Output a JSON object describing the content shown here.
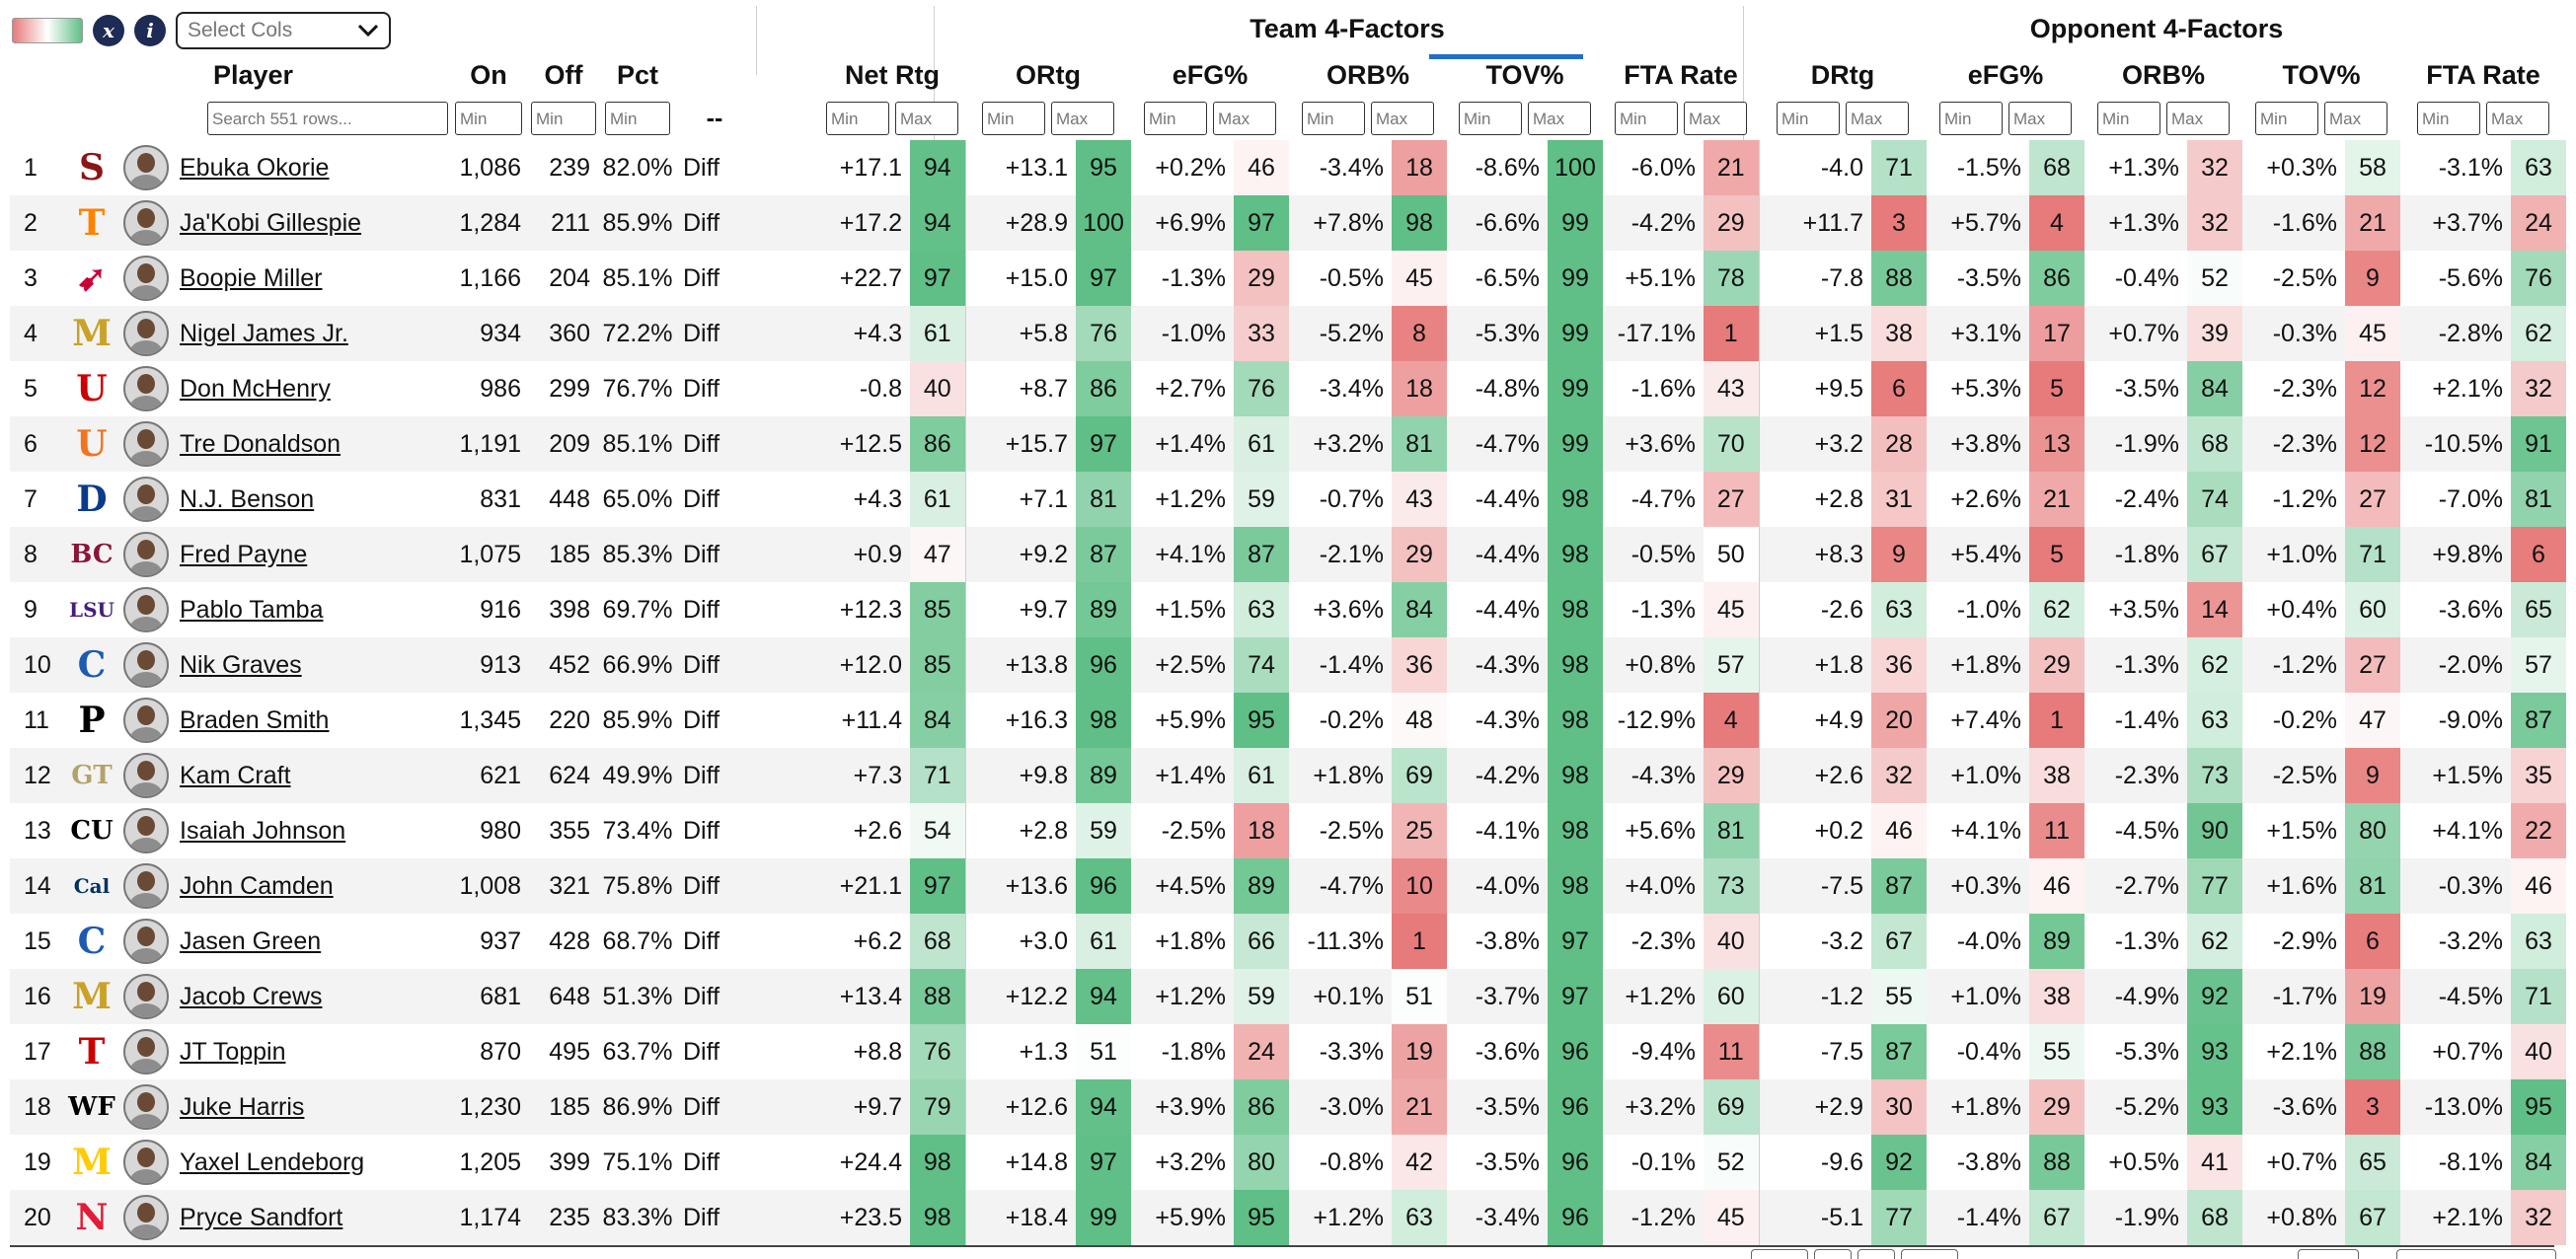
{
  "toolbar": {
    "stats_icon": "x",
    "info_icon": "i",
    "select_cols_placeholder": "Select Cols",
    "swatch_colors": [
      "#e77a7a",
      "#ffffff",
      "#5fbf86"
    ]
  },
  "groups": {
    "team": "Team 4-Factors",
    "opp": "Opponent 4-Factors"
  },
  "columns": {
    "player": "Player",
    "on": "On",
    "off": "Off",
    "pct": "Pct",
    "dash": "--",
    "netrtg": "Net Rtg",
    "ortg": "ORtg",
    "efg": "eFG%",
    "orb": "ORB%",
    "tov": "TOV%",
    "fta": "FTA Rate",
    "drtg": "DRtg",
    "oefg": "eFG%",
    "oorb": "ORB%",
    "otov": "TOV%",
    "ofta": "FTA Rate"
  },
  "filters": {
    "search_placeholder": "Search 551 rows...",
    "min": "Min",
    "max": "Max"
  },
  "colors": {
    "green_dark": "#5fbf86",
    "red_dark": "#e77a7a",
    "tov_indicator": "#1f6fc5"
  },
  "rows": [
    {
      "rank": "1",
      "logo": "stanford-logo",
      "logo_char": "S",
      "logo_color": "#8c1515",
      "player": "Ebuka Okorie",
      "on": "1,086",
      "off": "239",
      "pct": "82.0%",
      "diff": "Diff",
      "net": "+17.1",
      "netp": 94,
      "ortg": "+13.1",
      "ortgp": 95,
      "efg": "+0.2%",
      "efgp": 46,
      "orb": "-3.4%",
      "orbp": 18,
      "tov": "-8.6%",
      "tovp": 100,
      "fta": "-6.0%",
      "ftap": 21,
      "drtg": "-4.0",
      "drtgp": 71,
      "oefg": "-1.5%",
      "oefgp": 68,
      "oorb": "+1.3%",
      "oorbp": 32,
      "otov": "+0.3%",
      "otovp": 58,
      "ofta": "-3.1%",
      "oftap": 63
    },
    {
      "rank": "2",
      "logo": "tennessee-logo",
      "logo_char": "T",
      "logo_color": "#ff8200",
      "player": "Ja'Kobi Gillespie",
      "on": "1,284",
      "off": "211",
      "pct": "85.9%",
      "diff": "Diff",
      "net": "+17.2",
      "netp": 94,
      "ortg": "+28.9",
      "ortgp": 100,
      "efg": "+6.9%",
      "efgp": 97,
      "orb": "+7.8%",
      "orbp": 98,
      "tov": "-6.6%",
      "tovp": 99,
      "fta": "-4.2%",
      "ftap": 29,
      "drtg": "+11.7",
      "drtgp": 3,
      "oefg": "+5.7%",
      "oefgp": 4,
      "oorb": "+1.3%",
      "oorbp": 32,
      "otov": "-1.6%",
      "otovp": 21,
      "ofta": "+3.7%",
      "oftap": 24
    },
    {
      "rank": "3",
      "logo": "smu-logo",
      "logo_char": "➹",
      "logo_color": "#cc0035",
      "player": "Boopie Miller",
      "on": "1,166",
      "off": "204",
      "pct": "85.1%",
      "diff": "Diff",
      "net": "+22.7",
      "netp": 97,
      "ortg": "+15.0",
      "ortgp": 97,
      "efg": "-1.3%",
      "efgp": 29,
      "orb": "-0.5%",
      "orbp": 45,
      "tov": "-6.5%",
      "tovp": 99,
      "fta": "+5.1%",
      "ftap": 78,
      "drtg": "-7.8",
      "drtgp": 88,
      "oefg": "-3.5%",
      "oefgp": 86,
      "oorb": "-0.4%",
      "oorbp": 52,
      "otov": "-2.5%",
      "otovp": 9,
      "ofta": "-5.6%",
      "oftap": 76
    },
    {
      "rank": "4",
      "logo": "marquette-logo",
      "logo_char": "M",
      "logo_color": "#c9a227",
      "player": "Nigel James Jr.",
      "on": "934",
      "off": "360",
      "pct": "72.2%",
      "diff": "Diff",
      "net": "+4.3",
      "netp": 61,
      "ortg": "+5.8",
      "ortgp": 76,
      "efg": "-1.0%",
      "efgp": 33,
      "orb": "-5.2%",
      "orbp": 8,
      "tov": "-5.3%",
      "tovp": 99,
      "fta": "-17.1%",
      "ftap": 1,
      "drtg": "+1.5",
      "drtgp": 38,
      "oefg": "+3.1%",
      "oefgp": 17,
      "oorb": "+0.7%",
      "oorbp": 39,
      "otov": "-0.3%",
      "otovp": 45,
      "ofta": "-2.8%",
      "oftap": 62
    },
    {
      "rank": "5",
      "logo": "utah-logo",
      "logo_char": "U",
      "logo_color": "#cc0000",
      "player": "Don McHenry",
      "on": "986",
      "off": "299",
      "pct": "76.7%",
      "diff": "Diff",
      "net": "-0.8",
      "netp": 40,
      "ortg": "+8.7",
      "ortgp": 86,
      "efg": "+2.7%",
      "efgp": 76,
      "orb": "-3.4%",
      "orbp": 18,
      "tov": "-4.8%",
      "tovp": 99,
      "fta": "-1.6%",
      "ftap": 43,
      "drtg": "+9.5",
      "drtgp": 6,
      "oefg": "+5.3%",
      "oefgp": 5,
      "oorb": "-3.5%",
      "oorbp": 84,
      "otov": "-2.3%",
      "otovp": 12,
      "ofta": "+2.1%",
      "oftap": 32
    },
    {
      "rank": "6",
      "logo": "miami-logo",
      "logo_char": "U",
      "logo_color": "#f47321",
      "player": "Tre Donaldson",
      "on": "1,191",
      "off": "209",
      "pct": "85.1%",
      "diff": "Diff",
      "net": "+12.5",
      "netp": 86,
      "ortg": "+15.7",
      "ortgp": 97,
      "efg": "+1.4%",
      "efgp": 61,
      "orb": "+3.2%",
      "orbp": 81,
      "tov": "-4.7%",
      "tovp": 99,
      "fta": "+3.6%",
      "ftap": 70,
      "drtg": "+3.2",
      "drtgp": 28,
      "oefg": "+3.8%",
      "oefgp": 13,
      "oorb": "-1.9%",
      "oorbp": 68,
      "otov": "-2.3%",
      "otovp": 12,
      "ofta": "-10.5%",
      "oftap": 91
    },
    {
      "rank": "7",
      "logo": "depaul-logo",
      "logo_char": "D",
      "logo_color": "#0a3a8c",
      "player": "N.J. Benson",
      "on": "831",
      "off": "448",
      "pct": "65.0%",
      "diff": "Diff",
      "net": "+4.3",
      "netp": 61,
      "ortg": "+7.1",
      "ortgp": 81,
      "efg": "+1.2%",
      "efgp": 59,
      "orb": "-0.7%",
      "orbp": 43,
      "tov": "-4.4%",
      "tovp": 98,
      "fta": "-4.7%",
      "ftap": 27,
      "drtg": "+2.8",
      "drtgp": 31,
      "oefg": "+2.6%",
      "oefgp": 21,
      "oorb": "-2.4%",
      "oorbp": 74,
      "otov": "-1.2%",
      "otovp": 27,
      "ofta": "-7.0%",
      "oftap": 81
    },
    {
      "rank": "8",
      "logo": "boston-college-logo",
      "logo_char": "BC",
      "logo_color": "#8a1538",
      "player": "Fred Payne",
      "on": "1,075",
      "off": "185",
      "pct": "85.3%",
      "diff": "Diff",
      "net": "+0.9",
      "netp": 47,
      "ortg": "+9.2",
      "ortgp": 87,
      "efg": "+4.1%",
      "efgp": 87,
      "orb": "-2.1%",
      "orbp": 29,
      "tov": "-4.4%",
      "tovp": 98,
      "fta": "-0.5%",
      "ftap": 50,
      "drtg": "+8.3",
      "drtgp": 9,
      "oefg": "+5.4%",
      "oefgp": 5,
      "oorb": "-1.8%",
      "oorbp": 67,
      "otov": "+1.0%",
      "otovp": 71,
      "ofta": "+9.8%",
      "oftap": 6
    },
    {
      "rank": "9",
      "logo": "lsu-logo",
      "logo_char": "LSU",
      "logo_color": "#461d7c",
      "player": "Pablo Tamba",
      "on": "916",
      "off": "398",
      "pct": "69.7%",
      "diff": "Diff",
      "net": "+12.3",
      "netp": 85,
      "ortg": "+9.7",
      "ortgp": 89,
      "efg": "+1.5%",
      "efgp": 63,
      "orb": "+3.6%",
      "orbp": 84,
      "tov": "-4.4%",
      "tovp": 98,
      "fta": "-1.3%",
      "ftap": 45,
      "drtg": "-2.6",
      "drtgp": 63,
      "oefg": "-1.0%",
      "oefgp": 62,
      "oorb": "+3.5%",
      "oorbp": 14,
      "otov": "+0.4%",
      "otovp": 60,
      "ofta": "-3.6%",
      "oftap": 65
    },
    {
      "rank": "10",
      "logo": "creighton-logo",
      "logo_char": "C",
      "logo_color": "#1d5ab4",
      "player": "Nik Graves",
      "on": "913",
      "off": "452",
      "pct": "66.9%",
      "diff": "Diff",
      "net": "+12.0",
      "netp": 85,
      "ortg": "+13.8",
      "ortgp": 96,
      "efg": "+2.5%",
      "efgp": 74,
      "orb": "-1.4%",
      "orbp": 36,
      "tov": "-4.3%",
      "tovp": 98,
      "fta": "+0.8%",
      "ftap": 57,
      "drtg": "+1.8",
      "drtgp": 36,
      "oefg": "+1.8%",
      "oefgp": 29,
      "oorb": "-1.3%",
      "oorbp": 62,
      "otov": "-1.2%",
      "otovp": 27,
      "ofta": "-2.0%",
      "oftap": 57
    },
    {
      "rank": "11",
      "logo": "purdue-logo",
      "logo_char": "P",
      "logo_color": "#000000",
      "player": "Braden Smith",
      "on": "1,345",
      "off": "220",
      "pct": "85.9%",
      "diff": "Diff",
      "net": "+11.4",
      "netp": 84,
      "ortg": "+16.3",
      "ortgp": 98,
      "efg": "+5.9%",
      "efgp": 95,
      "orb": "-0.2%",
      "orbp": 48,
      "tov": "-4.3%",
      "tovp": 98,
      "fta": "-12.9%",
      "ftap": 4,
      "drtg": "+4.9",
      "drtgp": 20,
      "oefg": "+7.4%",
      "oefgp": 1,
      "oorb": "-1.4%",
      "oorbp": 63,
      "otov": "-0.2%",
      "otovp": 47,
      "ofta": "-9.0%",
      "oftap": 87
    },
    {
      "rank": "12",
      "logo": "georgia-tech-logo",
      "logo_char": "GT",
      "logo_color": "#b3a369",
      "player": "Kam Craft",
      "on": "621",
      "off": "624",
      "pct": "49.9%",
      "diff": "Diff",
      "net": "+7.3",
      "netp": 71,
      "ortg": "+9.8",
      "ortgp": 89,
      "efg": "+1.4%",
      "efgp": 61,
      "orb": "+1.8%",
      "orbp": 69,
      "tov": "-4.2%",
      "tovp": 98,
      "fta": "-4.3%",
      "ftap": 29,
      "drtg": "+2.6",
      "drtgp": 32,
      "oefg": "+1.0%",
      "oefgp": 38,
      "oorb": "-2.3%",
      "oorbp": 73,
      "otov": "-2.5%",
      "otovp": 9,
      "ofta": "+1.5%",
      "oftap": 35
    },
    {
      "rank": "13",
      "logo": "colorado-logo",
      "logo_char": "CU",
      "logo_color": "#000000",
      "player": "Isaiah Johnson",
      "on": "980",
      "off": "355",
      "pct": "73.4%",
      "diff": "Diff",
      "net": "+2.6",
      "netp": 54,
      "ortg": "+2.8",
      "ortgp": 59,
      "efg": "-2.5%",
      "efgp": 18,
      "orb": "-2.5%",
      "orbp": 25,
      "tov": "-4.1%",
      "tovp": 98,
      "fta": "+5.6%",
      "ftap": 81,
      "drtg": "+0.2",
      "drtgp": 46,
      "oefg": "+4.1%",
      "oefgp": 11,
      "oorb": "-4.5%",
      "oorbp": 90,
      "otov": "+1.5%",
      "otovp": 80,
      "ofta": "+4.1%",
      "oftap": 22
    },
    {
      "rank": "14",
      "logo": "cal-logo",
      "logo_char": "Cal",
      "logo_color": "#003262",
      "player": "John Camden",
      "on": "1,008",
      "off": "321",
      "pct": "75.8%",
      "diff": "Diff",
      "net": "+21.1",
      "netp": 97,
      "ortg": "+13.6",
      "ortgp": 96,
      "efg": "+4.5%",
      "efgp": 89,
      "orb": "-4.7%",
      "orbp": 10,
      "tov": "-4.0%",
      "tovp": 98,
      "fta": "+4.0%",
      "ftap": 73,
      "drtg": "-7.5",
      "drtgp": 87,
      "oefg": "+0.3%",
      "oefgp": 46,
      "oorb": "-2.7%",
      "oorbp": 77,
      "otov": "+1.6%",
      "otovp": 81,
      "ofta": "-0.3%",
      "oftap": 46
    },
    {
      "rank": "15",
      "logo": "creighton-logo",
      "logo_char": "C",
      "logo_color": "#1d5ab4",
      "player": "Jasen Green",
      "on": "937",
      "off": "428",
      "pct": "68.7%",
      "diff": "Diff",
      "net": "+6.2",
      "netp": 68,
      "ortg": "+3.0",
      "ortgp": 61,
      "efg": "+1.8%",
      "efgp": 66,
      "orb": "-11.3%",
      "orbp": 1,
      "tov": "-3.8%",
      "tovp": 97,
      "fta": "-2.3%",
      "ftap": 40,
      "drtg": "-3.2",
      "drtgp": 67,
      "oefg": "-4.0%",
      "oefgp": 89,
      "oorb": "-1.3%",
      "oorbp": 62,
      "otov": "-2.9%",
      "otovp": 6,
      "ofta": "-3.2%",
      "oftap": 63
    },
    {
      "rank": "16",
      "logo": "missouri-logo",
      "logo_char": "M",
      "logo_color": "#c9a227",
      "player": "Jacob Crews",
      "on": "681",
      "off": "648",
      "pct": "51.3%",
      "diff": "Diff",
      "net": "+13.4",
      "netp": 88,
      "ortg": "+12.2",
      "ortgp": 94,
      "efg": "+1.2%",
      "efgp": 59,
      "orb": "+0.1%",
      "orbp": 51,
      "tov": "-3.7%",
      "tovp": 97,
      "fta": "+1.2%",
      "ftap": 60,
      "drtg": "-1.2",
      "drtgp": 55,
      "oefg": "+1.0%",
      "oefgp": 38,
      "oorb": "-4.9%",
      "oorbp": 92,
      "otov": "-1.7%",
      "otovp": 19,
      "ofta": "-4.5%",
      "oftap": 71
    },
    {
      "rank": "17",
      "logo": "texas-tech-logo",
      "logo_char": "T",
      "logo_color": "#cc0000",
      "player": "JT Toppin",
      "on": "870",
      "off": "495",
      "pct": "63.7%",
      "diff": "Diff",
      "net": "+8.8",
      "netp": 76,
      "ortg": "+1.3",
      "ortgp": 51,
      "efg": "-1.8%",
      "efgp": 24,
      "orb": "-3.3%",
      "orbp": 19,
      "tov": "-3.6%",
      "tovp": 96,
      "fta": "-9.4%",
      "ftap": 11,
      "drtg": "-7.5",
      "drtgp": 87,
      "oefg": "-0.4%",
      "oefgp": 55,
      "oorb": "-5.3%",
      "oorbp": 93,
      "otov": "+2.1%",
      "otovp": 88,
      "ofta": "+0.7%",
      "oftap": 40
    },
    {
      "rank": "18",
      "logo": "wake-forest-logo",
      "logo_char": "WF",
      "logo_color": "#000000",
      "player": "Juke Harris",
      "on": "1,230",
      "off": "185",
      "pct": "86.9%",
      "diff": "Diff",
      "net": "+9.7",
      "netp": 79,
      "ortg": "+12.6",
      "ortgp": 94,
      "efg": "+3.9%",
      "efgp": 86,
      "orb": "-3.0%",
      "orbp": 21,
      "tov": "-3.5%",
      "tovp": 96,
      "fta": "+3.2%",
      "ftap": 69,
      "drtg": "+2.9",
      "drtgp": 30,
      "oefg": "+1.8%",
      "oefgp": 29,
      "oorb": "-5.2%",
      "oorbp": 93,
      "otov": "-3.6%",
      "otovp": 3,
      "ofta": "-13.0%",
      "oftap": 95
    },
    {
      "rank": "19",
      "logo": "michigan-logo",
      "logo_char": "M",
      "logo_color": "#ffcb05",
      "player": "Yaxel Lendeborg",
      "on": "1,205",
      "off": "399",
      "pct": "75.1%",
      "diff": "Diff",
      "net": "+24.4",
      "netp": 98,
      "ortg": "+14.8",
      "ortgp": 97,
      "efg": "+3.2%",
      "efgp": 80,
      "orb": "-0.8%",
      "orbp": 42,
      "tov": "-3.5%",
      "tovp": 96,
      "fta": "-0.1%",
      "ftap": 52,
      "drtg": "-9.6",
      "drtgp": 92,
      "oefg": "-3.8%",
      "oefgp": 88,
      "oorb": "+0.5%",
      "oorbp": 41,
      "otov": "+0.7%",
      "otovp": 65,
      "ofta": "-8.1%",
      "oftap": 84
    },
    {
      "rank": "20",
      "logo": "nebraska-logo",
      "logo_char": "N",
      "logo_color": "#e41c38",
      "player": "Pryce Sandfort",
      "on": "1,174",
      "off": "235",
      "pct": "83.3%",
      "diff": "Diff",
      "net": "+23.5",
      "netp": 98,
      "ortg": "+18.4",
      "ortgp": 99,
      "efg": "+5.9%",
      "efgp": 95,
      "orb": "+1.2%",
      "orbp": 63,
      "tov": "-3.4%",
      "tovp": 96,
      "fta": "-1.2%",
      "ftap": 45,
      "drtg": "-5.1",
      "drtgp": 77,
      "oefg": "-1.4%",
      "oefgp": 67,
      "oorb": "-1.9%",
      "oorbp": 68,
      "otov": "+0.8%",
      "otovp": 67,
      "ofta": "+2.1%",
      "oftap": 32
    }
  ]
}
